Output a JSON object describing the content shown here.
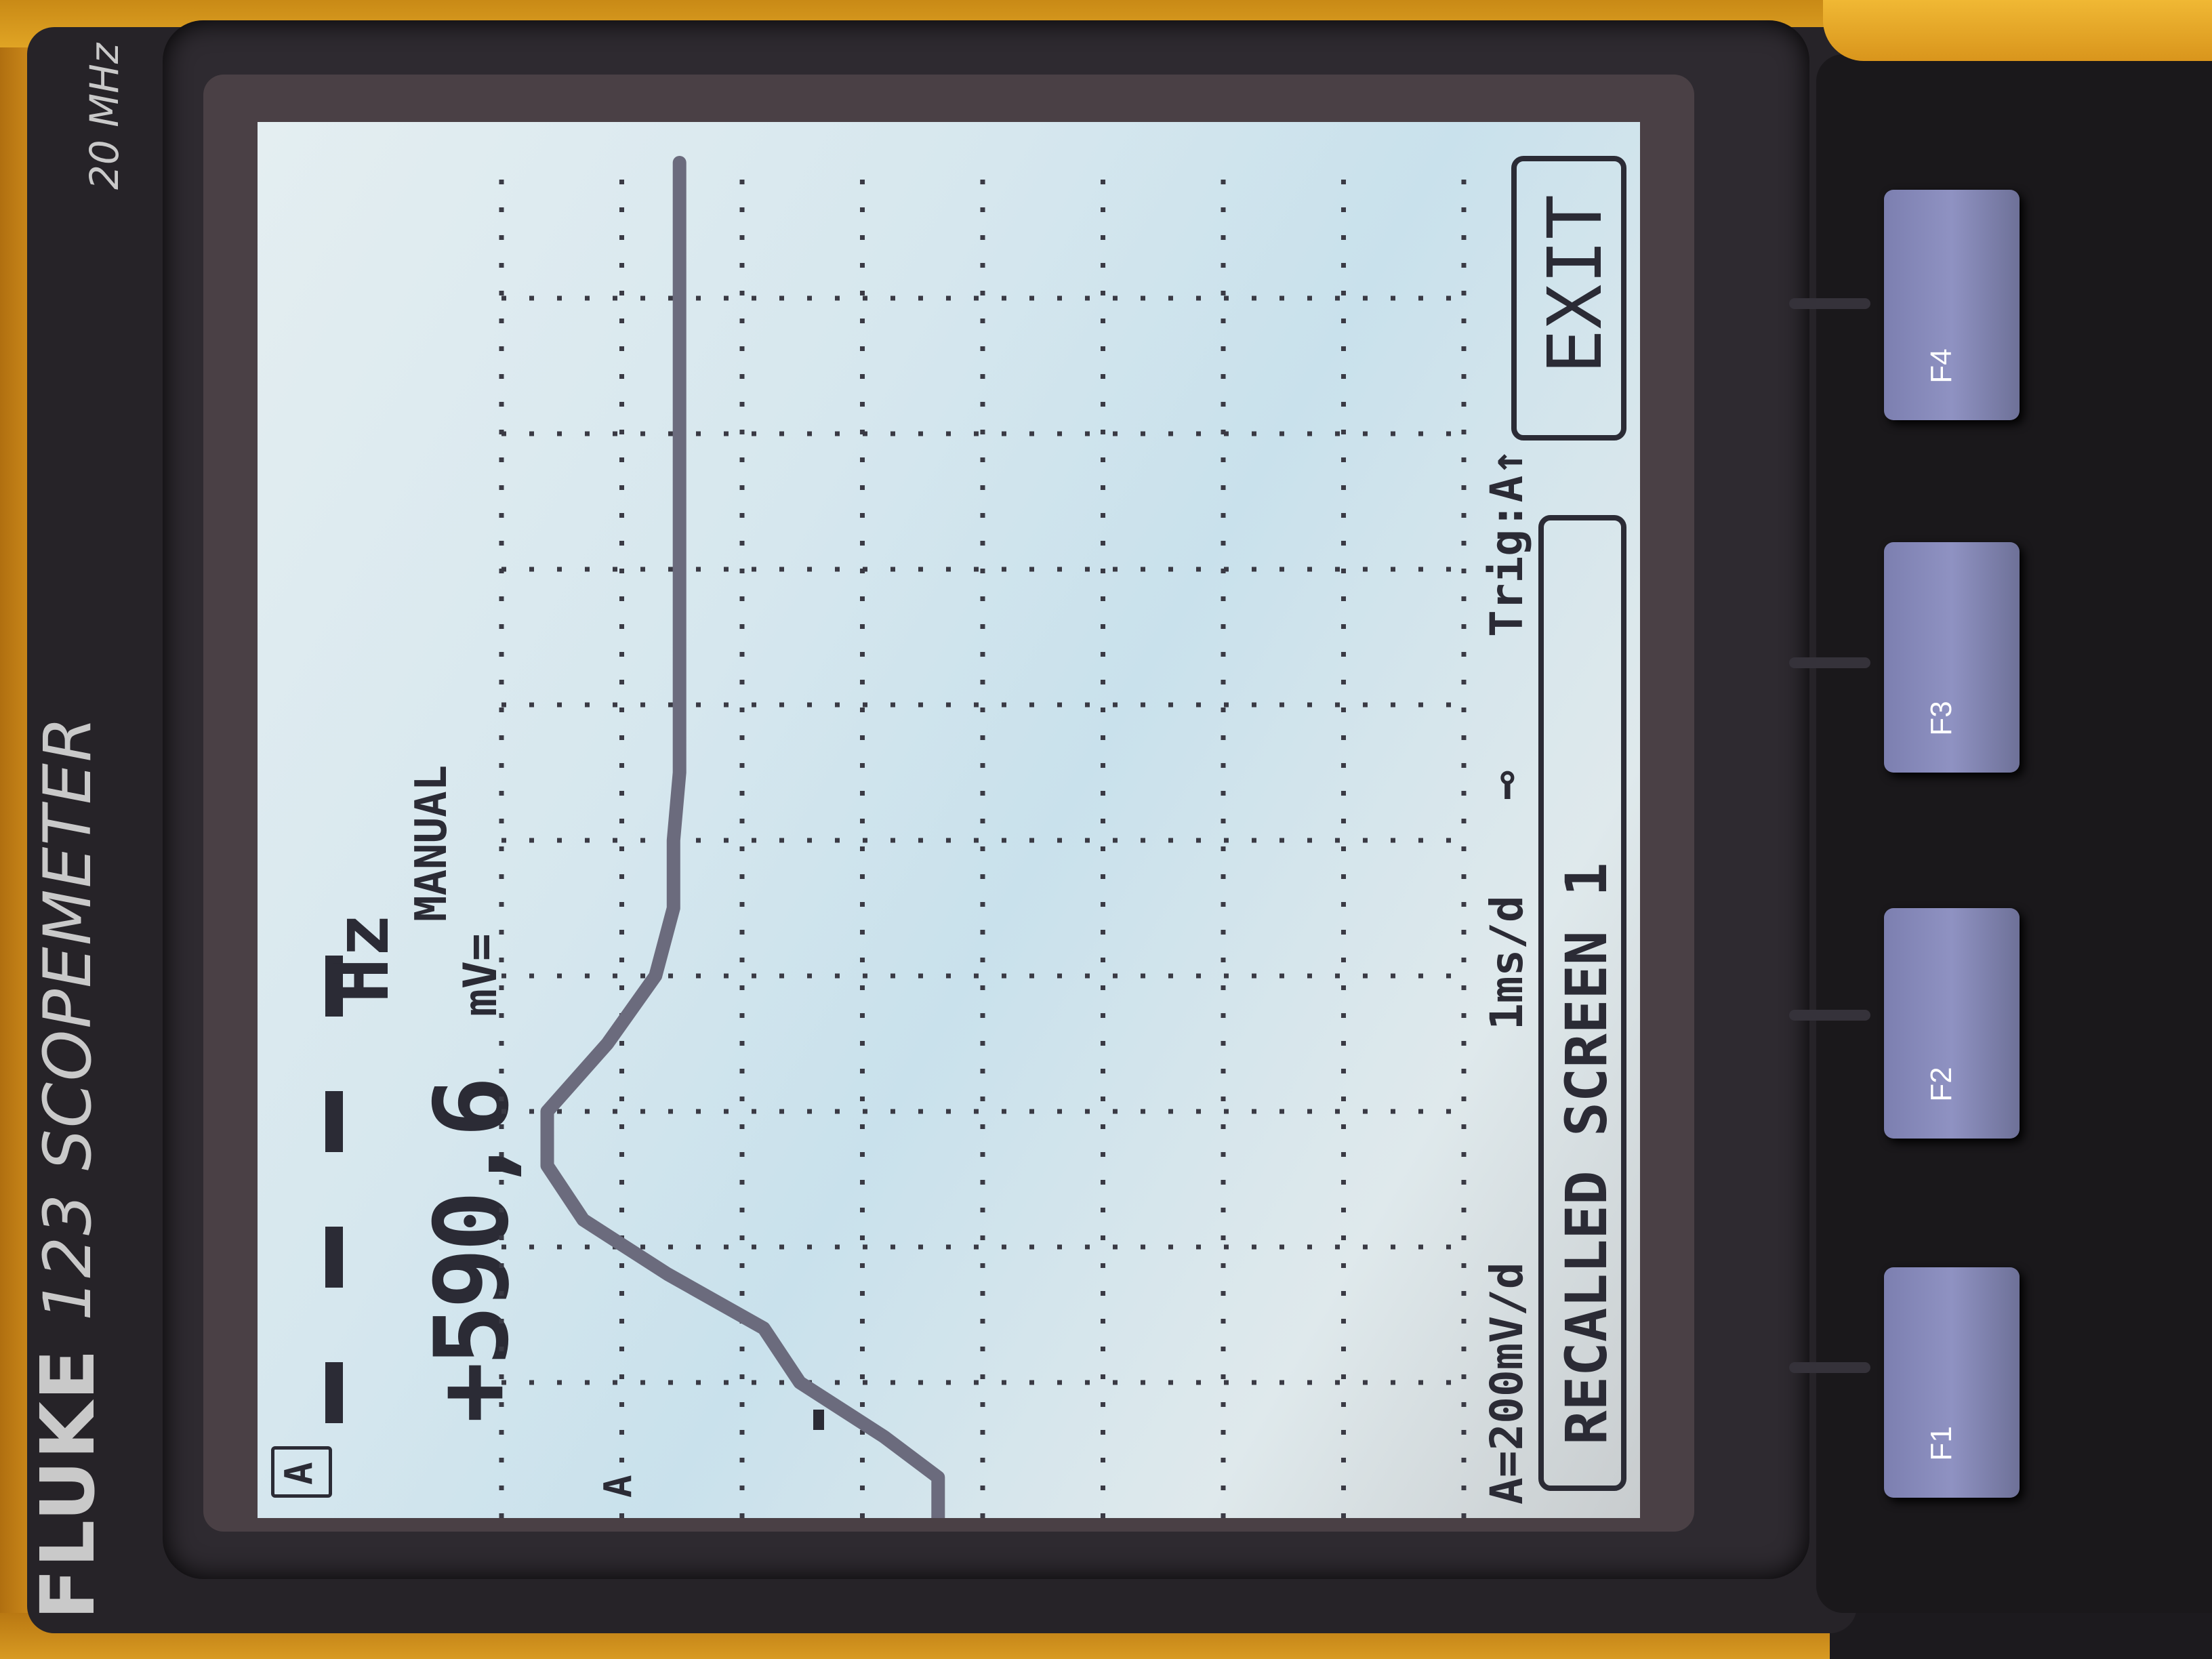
{
  "device": {
    "brand": "FLUKE",
    "model": "123 SCOPEMETER",
    "bandwidth": "20 MHz"
  },
  "screen": {
    "channel_badge": "A",
    "reading_value": "+590,6",
    "reading_unit": "mV=",
    "frequency_unit": "Hz",
    "mode": "MANUAL",
    "channel_marker": "A",
    "status_line": {
      "volts_per_div": "A=200mV/d",
      "time_per_div": "1ms/d",
      "trigger": "Trig:A↑"
    },
    "recalled_label": "RECALLED SCREEN 1",
    "exit_label": "EXIT",
    "waveform": {
      "type": "line",
      "x_unit": "ms",
      "y_unit": "V",
      "points_x": [
        0,
        0.3,
        0.6,
        1.0,
        1.4,
        1.8,
        2.2,
        2.6,
        3.0,
        3.5,
        4.0,
        4.5,
        5.0,
        5.5,
        6.0,
        6.5,
        7.0,
        8.0,
        9.0,
        10.0
      ],
      "points_y": [
        0.01,
        0.01,
        0.1,
        0.24,
        0.3,
        0.46,
        0.6,
        0.66,
        0.66,
        0.56,
        0.48,
        0.45,
        0.45,
        0.44,
        0.44,
        0.44,
        0.44,
        0.44,
        0.44,
        0.44
      ]
    }
  },
  "keys": [
    "F1",
    "F2",
    "F3",
    "F4"
  ],
  "colors": {
    "lcd_background": "#d6e7ee",
    "trace": "#6b6b7d",
    "text": "#2b2b35",
    "key": "#8f92c2",
    "holster": "#e0a424"
  }
}
